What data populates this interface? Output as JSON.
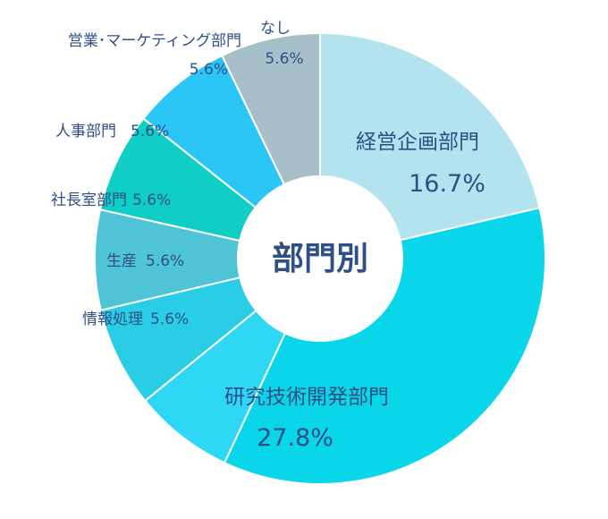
{
  "chart_data": {
    "type": "pie",
    "donut": true,
    "center_label": "部門別",
    "slices": [
      {
        "name": "経営企画部門",
        "value": 16.7,
        "value_label": "16.7%",
        "color": "#b3e3ef"
      },
      {
        "name": "研究技術開発部門",
        "value": 27.8,
        "value_label": "27.8%",
        "color": "#0ad6ea"
      },
      {
        "name": "情報処理",
        "value": 5.6,
        "value_label": "5.6%",
        "color": "#2ed8f4"
      },
      {
        "name": "生産",
        "value": 5.6,
        "value_label": "5.6%",
        "color": "#2acde6"
      },
      {
        "name": "社長室部門",
        "value": 5.6,
        "value_label": "5.6%",
        "color": "#4ec4d6"
      },
      {
        "name": "人事部門",
        "value": 5.6,
        "value_label": "5.6%",
        "color": "#10cdc6"
      },
      {
        "name": "営業･マーケティング部門",
        "value": 5.6,
        "value_label": "5.6%",
        "color": "#2bc6f6"
      },
      {
        "name": "なし",
        "value": 5.6,
        "value_label": "5.6%",
        "color": "#a7bfc9"
      }
    ]
  }
}
